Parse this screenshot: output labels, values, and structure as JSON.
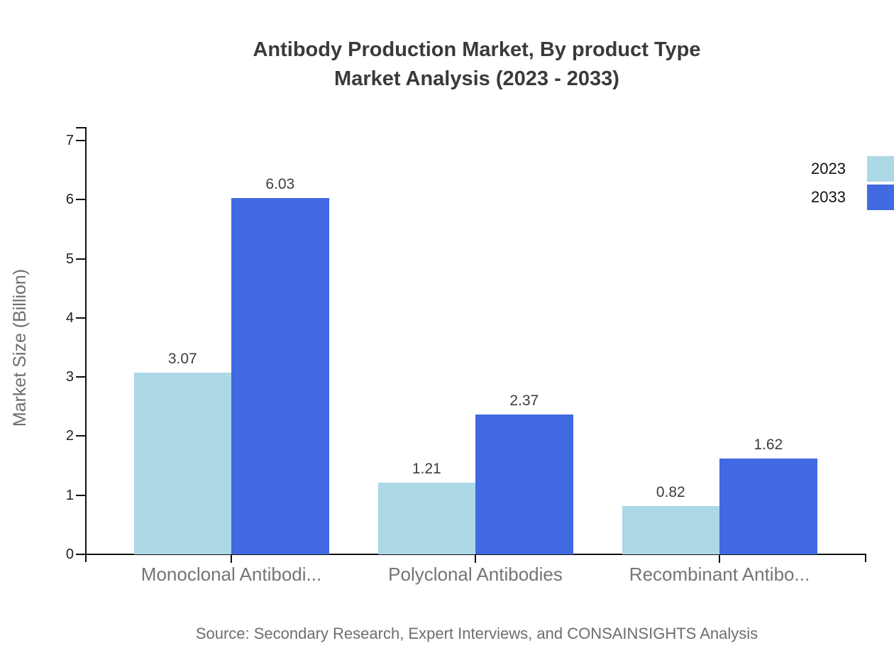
{
  "chart": {
    "title_line1": "Antibody Production Market, By product Type",
    "title_line2": "Market Analysis (2023 - 2033)",
    "ylabel": "Market Size (Billion)",
    "source": "Source: Secondary Research, Expert Interviews, and CONSAINSIGHTS Analysis"
  },
  "chart_data": {
    "type": "bar",
    "title": "Antibody Production Market, By product Type Market Analysis (2023 - 2033)",
    "categories": [
      "Monoclonal Antibodi...",
      "Polyclonal Antibodies",
      "Recombinant Antibo..."
    ],
    "series": [
      {
        "name": "2023",
        "color": "#ADD8E6",
        "values": [
          3.07,
          1.21,
          0.82
        ]
      },
      {
        "name": "2033",
        "color": "#4169E1",
        "values": [
          6.03,
          2.37,
          1.62
        ]
      }
    ],
    "xlabel": "",
    "ylabel": "Market Size (Billion)",
    "ylim": [
      0,
      7
    ],
    "yticks": [
      0,
      1,
      2,
      3,
      4,
      5,
      6,
      7
    ],
    "grid": false,
    "value_labels": true,
    "legend_position": "top-right",
    "axis_color": "#111111"
  }
}
